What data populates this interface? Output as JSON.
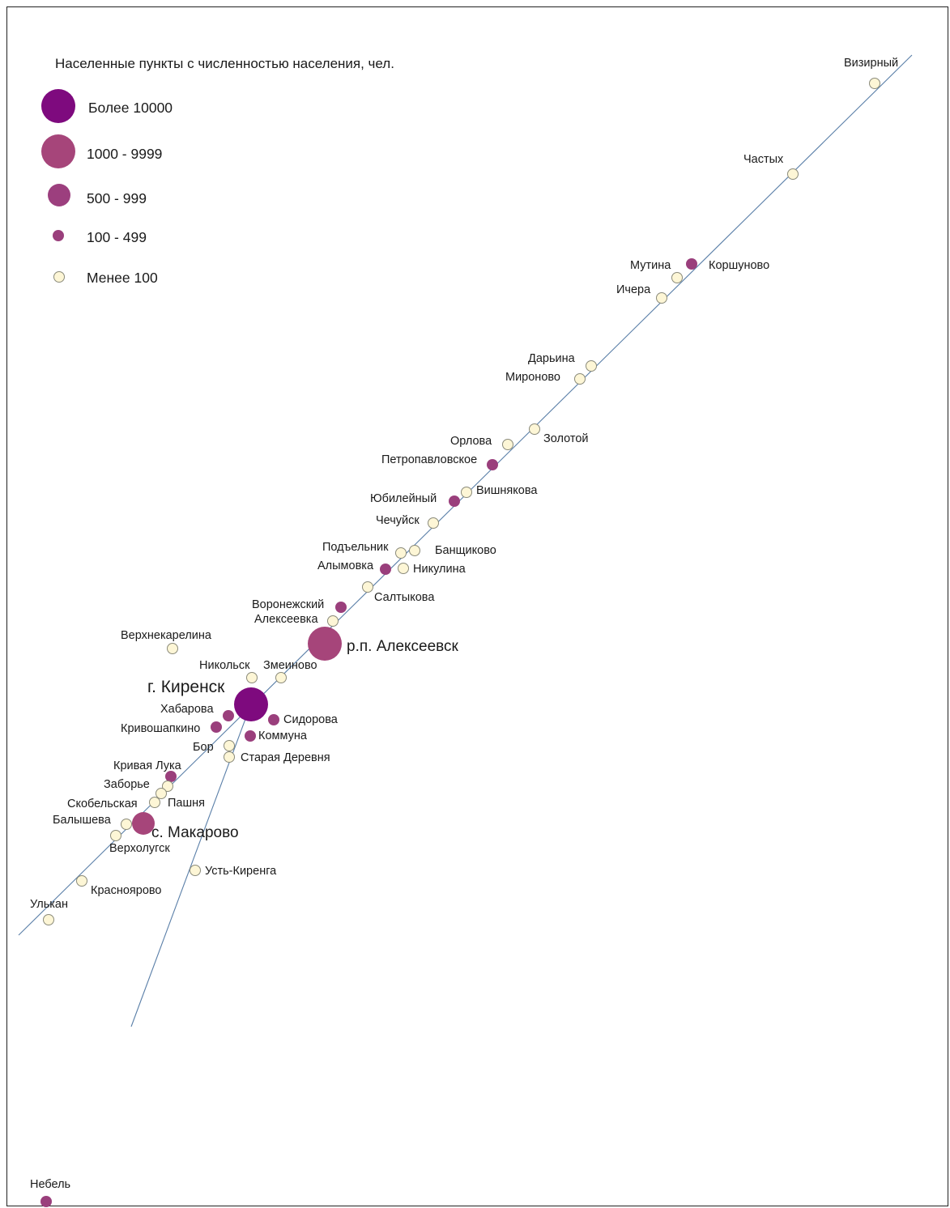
{
  "legend": {
    "title": "Населенные пункты с численностью населения, чел.",
    "items": [
      {
        "label": "Более 10000",
        "class": "c1"
      },
      {
        "label": "1000 - 9999",
        "class": "c2"
      },
      {
        "label": "500 - 999",
        "class": "c3"
      },
      {
        "label": "100 - 499",
        "class": "c4"
      },
      {
        "label": "Менее 100",
        "class": "c5"
      }
    ]
  },
  "colors": {
    "c1": "#7e0a7e",
    "c2": "#a6457a",
    "c3": "#9c3f7e",
    "c4": "#9a3f7c",
    "c5": "#fdf6d6",
    "c5_stroke": "#8a8a7a",
    "river": "#5a7fa8"
  },
  "settlements": [
    {
      "name": "Визирный",
      "class": "c5"
    },
    {
      "name": "Частых",
      "class": "c5"
    },
    {
      "name": "Мутина",
      "class": "c5"
    },
    {
      "name": "Коршуново",
      "class": "c4"
    },
    {
      "name": "Ичера",
      "class": "c5"
    },
    {
      "name": "Дарьина",
      "class": "c5"
    },
    {
      "name": "Мироново",
      "class": "c5"
    },
    {
      "name": "Орлова",
      "class": "c5"
    },
    {
      "name": "Золотой",
      "class": "c5"
    },
    {
      "name": "Петропавловское",
      "class": "c4"
    },
    {
      "name": "Юбилейный",
      "class": "c4"
    },
    {
      "name": "Вишнякова",
      "class": "c5"
    },
    {
      "name": "Чечуйск",
      "class": "c5"
    },
    {
      "name": "Подъельник",
      "class": "c5"
    },
    {
      "name": "Банщиково",
      "class": "c5"
    },
    {
      "name": "Алымовка",
      "class": "c4"
    },
    {
      "name": "Никулина",
      "class": "c5"
    },
    {
      "name": "Салтыкова",
      "class": "c5"
    },
    {
      "name": "Воронежский",
      "class": "c4"
    },
    {
      "name": "Алексеевка",
      "class": "c5"
    },
    {
      "name": "р.п. Алексеевск",
      "class": "c2"
    },
    {
      "name": "Верхнекарелина",
      "class": "c5"
    },
    {
      "name": "Никольск",
      "class": "c5"
    },
    {
      "name": "Змеиново",
      "class": "c5"
    },
    {
      "name": "г. Киренск",
      "class": "c1"
    },
    {
      "name": "Хабарова",
      "class": "c4"
    },
    {
      "name": "Сидорова",
      "class": "c4"
    },
    {
      "name": "Кривошапкино",
      "class": "c4"
    },
    {
      "name": "Коммуна",
      "class": "c4"
    },
    {
      "name": "Бор",
      "class": "c5"
    },
    {
      "name": "Старая Деревня",
      "class": "c5"
    },
    {
      "name": "Кривая Лука",
      "class": "c4"
    },
    {
      "name": "Заборье",
      "class": "c5"
    },
    {
      "name": "Скобельская",
      "class": "c5"
    },
    {
      "name": "Пашня",
      "class": "c5"
    },
    {
      "name": "Балышева",
      "class": "c5"
    },
    {
      "name": "с. Макарово",
      "class": "c2"
    },
    {
      "name": "Верхолугск",
      "class": "c5"
    },
    {
      "name": "Усть-Киренга",
      "class": "c5"
    },
    {
      "name": "Красноярово",
      "class": "c5"
    },
    {
      "name": "Улькан",
      "class": "c5"
    },
    {
      "name": "Небель",
      "class": "c4"
    }
  ]
}
